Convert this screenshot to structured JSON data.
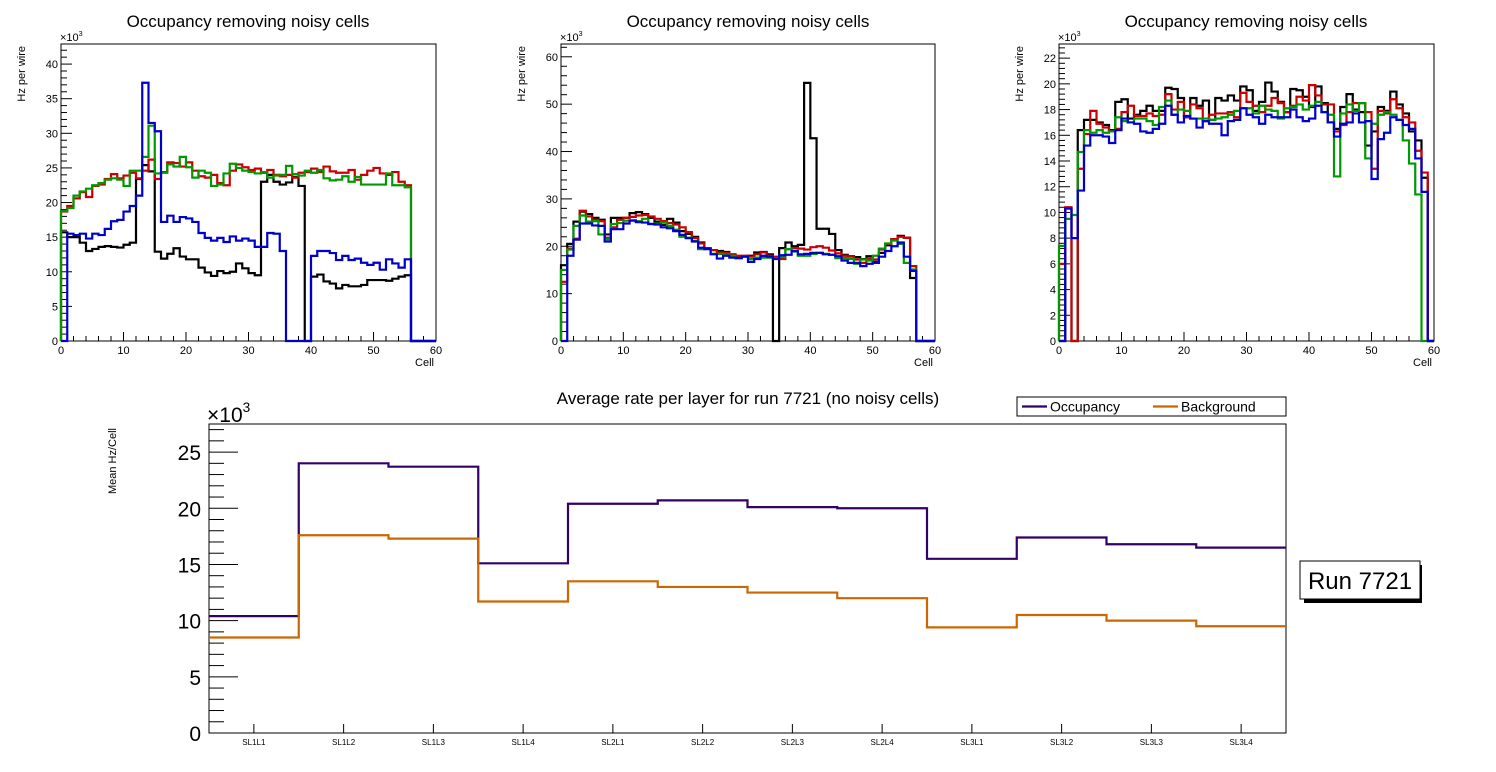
{
  "chart_data": [
    {
      "type": "line",
      "title": "Occupancy removing noisy cells",
      "xlabel": "Cell",
      "ylabel": "Hz per wire",
      "y_multiplier_label": "×10^3",
      "xlim": [
        0,
        60
      ],
      "ylim": [
        0,
        42.9
      ],
      "x_ticks": [
        0,
        10,
        20,
        30,
        40,
        50,
        60
      ],
      "y_ticks": [
        0,
        5,
        10,
        15,
        20,
        25,
        30,
        35,
        40
      ],
      "bin_width": 1,
      "series": [
        {
          "name": "black",
          "color": "#000000",
          "values": [
            15.7,
            15.0,
            15.0,
            14.2,
            13.0,
            13.3,
            13.6,
            13.7,
            13.6,
            13.5,
            13.9,
            14.2,
            23.4,
            25.4,
            24.5,
            12.9,
            11.9,
            12.6,
            13.4,
            12.2,
            11.8,
            11.8,
            10.6,
            9.9,
            9.4,
            10.1,
            9.8,
            10.0,
            11.2,
            10.5,
            9.8,
            9.5,
            23.0,
            24.0,
            23.0,
            22.6,
            22.9,
            23.7,
            22.4,
            0,
            9.3,
            9.6,
            8.6,
            8.3,
            7.6,
            8.1,
            7.9,
            7.9,
            8.1,
            8.8,
            8.8,
            8.8,
            8.7,
            9.0,
            9.3,
            9.5,
            0,
            0,
            0,
            0
          ]
        },
        {
          "name": "red",
          "color": "#cc0000",
          "values": [
            18.7,
            19.5,
            20.6,
            21.5,
            20.8,
            22.4,
            22.6,
            23.4,
            24.1,
            23.5,
            23.9,
            24.3,
            23.5,
            24.6,
            26.2,
            23.4,
            24.4,
            25.8,
            25.7,
            25.2,
            25.8,
            24.6,
            23.8,
            23.6,
            24.0,
            22.8,
            22.5,
            24.6,
            25.5,
            25.1,
            24.7,
            24.9,
            24.3,
            24.7,
            24.0,
            23.8,
            24.0,
            23.6,
            24.3,
            24.4,
            24.9,
            24.4,
            25.2,
            24.5,
            24.3,
            24.3,
            24.7,
            23.3,
            24.0,
            24.6,
            25.0,
            24.2,
            24.0,
            24.4,
            23.0,
            22.5,
            0,
            0,
            0,
            0
          ]
        },
        {
          "name": "green",
          "color": "#009900",
          "values": [
            18.8,
            19.2,
            21.0,
            21.6,
            22.0,
            22.5,
            22.8,
            23.3,
            23.5,
            23.3,
            22.4,
            24.6,
            24.6,
            26.6,
            31.1,
            24.2,
            24.3,
            25.5,
            25.2,
            26.6,
            25.1,
            23.6,
            24.6,
            24.3,
            22.4,
            22.6,
            24.2,
            25.6,
            25.0,
            24.6,
            24.4,
            24.2,
            24.4,
            23.6,
            23.9,
            24.0,
            25.3,
            24.1,
            23.9,
            24.6,
            24.3,
            24.7,
            23.5,
            23.2,
            23.3,
            23.8,
            23.0,
            23.7,
            22.6,
            22.6,
            22.6,
            22.6,
            24.2,
            22.5,
            22.5,
            22.2,
            0,
            0,
            0,
            0
          ]
        },
        {
          "name": "blue",
          "color": "#0000cc",
          "values": [
            0,
            15.5,
            15.3,
            15.5,
            14.8,
            15.5,
            15.3,
            16.2,
            17.3,
            17.5,
            18.7,
            19.5,
            21.0,
            37.3,
            31.5,
            30.3,
            17.2,
            18.1,
            17.2,
            17.9,
            17.7,
            17.2,
            15.6,
            14.9,
            14.5,
            14.9,
            14.3,
            15.1,
            14.5,
            14.8,
            14.5,
            13.6,
            13.6,
            15.6,
            15.5,
            13.0,
            0,
            0,
            0,
            0,
            12.3,
            13.0,
            13.0,
            12.7,
            11.7,
            12.3,
            11.7,
            11.9,
            11.3,
            11.0,
            11.3,
            10.3,
            11.8,
            11.2,
            10.6,
            11.8,
            0,
            0,
            0,
            0
          ]
        }
      ]
    },
    {
      "type": "line",
      "title": "Occupancy removing noisy cells",
      "xlabel": "Cell",
      "ylabel": "Hz per wire",
      "y_multiplier_label": "×10^3",
      "xlim": [
        0,
        60
      ],
      "ylim": [
        0,
        62.7
      ],
      "x_ticks": [
        0,
        10,
        20,
        30,
        40,
        50,
        60
      ],
      "y_ticks": [
        0,
        10,
        20,
        30,
        40,
        50,
        60
      ],
      "bin_width": 1,
      "series": [
        {
          "name": "black",
          "color": "#000000",
          "values": [
            16.0,
            20.5,
            25.2,
            27.3,
            26.8,
            26.0,
            25.6,
            22.5,
            26.0,
            26.0,
            26.0,
            27.0,
            27.2,
            26.8,
            26.0,
            25.2,
            24.5,
            25.8,
            25.0,
            23.2,
            22.6,
            22.0,
            20.8,
            19.6,
            19.2,
            19.0,
            18.8,
            18.3,
            17.8,
            17.9,
            18.0,
            18.7,
            18.8,
            18.3,
            0,
            19.6,
            20.8,
            20.0,
            20.3,
            54.5,
            42.8,
            23.7,
            23.7,
            22.6,
            19.2,
            18.2,
            17.9,
            17.7,
            17.3,
            17.9,
            16.7,
            18.6,
            20.2,
            21.5,
            22.2,
            21.8,
            13.3,
            0,
            0,
            0
          ]
        },
        {
          "name": "red",
          "color": "#cc0000",
          "values": [
            12.5,
            19.5,
            21.6,
            27.5,
            26.3,
            25.6,
            25.3,
            21.8,
            24.0,
            25.6,
            26.0,
            26.2,
            26.5,
            26.6,
            26.3,
            25.8,
            25.3,
            24.9,
            24.6,
            24.0,
            23.0,
            21.7,
            20.6,
            19.5,
            19.2,
            18.7,
            18.6,
            18.2,
            18.0,
            18.0,
            17.8,
            18.3,
            18.7,
            18.0,
            17.8,
            17.3,
            19.4,
            19.6,
            19.5,
            19.3,
            19.8,
            20.0,
            19.7,
            19.1,
            18.5,
            18.0,
            17.8,
            17.2,
            16.5,
            17.4,
            17.2,
            19.3,
            20.5,
            21.5,
            22.0,
            21.8,
            15.8,
            0,
            0,
            0
          ]
        },
        {
          "name": "green",
          "color": "#009900",
          "values": [
            15.0,
            19.3,
            24.3,
            26.5,
            25.2,
            25.3,
            22.5,
            21.5,
            24.7,
            24.9,
            25.4,
            25.5,
            25.3,
            25.8,
            24.7,
            24.8,
            25.0,
            24.3,
            23.5,
            22.0,
            21.8,
            21.1,
            19.4,
            19.5,
            18.4,
            18.4,
            18.3,
            18.0,
            17.5,
            17.8,
            17.3,
            17.6,
            17.6,
            17.6,
            17.4,
            17.7,
            19.4,
            18.9,
            18.0,
            18.0,
            18.4,
            18.6,
            18.4,
            18.2,
            17.5,
            17.5,
            17.3,
            16.3,
            17.2,
            17.0,
            18.0,
            19.5,
            20.6,
            21.2,
            20.5,
            16.5,
            15.1,
            0,
            0,
            0
          ]
        },
        {
          "name": "blue",
          "color": "#0000cc",
          "values": [
            0,
            18.0,
            21.4,
            24.8,
            24.8,
            24.4,
            24.3,
            21.0,
            23.6,
            23.6,
            24.8,
            25.4,
            25.1,
            25.0,
            24.7,
            24.6,
            24.0,
            23.8,
            23.2,
            22.4,
            21.7,
            21.0,
            19.7,
            19.4,
            18.3,
            17.4,
            18.0,
            17.6,
            17.5,
            17.8,
            16.7,
            17.3,
            18.0,
            17.8,
            17.3,
            18.1,
            18.2,
            19.0,
            18.3,
            18.4,
            18.6,
            18.6,
            18.3,
            18.2,
            17.9,
            17.0,
            16.5,
            16.5,
            15.8,
            16.3,
            16.5,
            17.8,
            19.0,
            20.0,
            20.8,
            17.8,
            14.8,
            0,
            0,
            0
          ]
        }
      ]
    },
    {
      "type": "line",
      "title": "Occupancy removing noisy cells",
      "xlabel": "Cell",
      "ylabel": "Hz per wire",
      "y_multiplier_label": "×10^3",
      "xlim": [
        0,
        60
      ],
      "ylim": [
        0,
        23.1
      ],
      "x_ticks": [
        0,
        10,
        20,
        30,
        40,
        50,
        60
      ],
      "y_ticks": [
        0,
        2,
        4,
        6,
        8,
        10,
        12,
        14,
        16,
        18,
        20,
        22
      ],
      "bin_width": 1,
      "series": [
        {
          "name": "black",
          "color": "#000000",
          "values": [
            0,
            10.3,
            0,
            16.4,
            17.2,
            17.2,
            17.0,
            16.8,
            16.4,
            18.6,
            18.8,
            17.3,
            17.6,
            17.9,
            18.3,
            17.9,
            17.9,
            19.7,
            19.6,
            18.9,
            17.4,
            18.9,
            18.3,
            18.7,
            17.2,
            18.9,
            18.7,
            19.1,
            18.7,
            19.8,
            19.5,
            17.9,
            18.6,
            20.1,
            19.4,
            18.6,
            17.8,
            19.6,
            19.5,
            19.0,
            18.2,
            19.8,
            18.5,
            17.0,
            16.5,
            18.2,
            19.2,
            18.0,
            17.8,
            15.2,
            16.3,
            18.2,
            17.9,
            19.4,
            18.4,
            17.7,
            16.3,
            15.6,
            12.7,
            0
          ]
        },
        {
          "name": "red",
          "color": "#cc0000",
          "values": [
            6.0,
            10.4,
            0,
            13.4,
            16.1,
            17.9,
            16.9,
            16.6,
            16.3,
            16.5,
            17.8,
            18.3,
            17.5,
            17.5,
            17.7,
            17.5,
            17.6,
            19.2,
            18.0,
            18.6,
            17.4,
            18.4,
            18.1,
            17.1,
            17.6,
            17.7,
            17.7,
            17.8,
            17.4,
            19.3,
            18.6,
            18.3,
            17.8,
            18.3,
            18.9,
            18.5,
            17.8,
            18.3,
            19.0,
            18.7,
            19.9,
            19.1,
            18.4,
            18.4,
            16.3,
            16.8,
            17.8,
            18.5,
            18.5,
            17.8,
            13.4,
            17.9,
            17.7,
            18.8,
            18.1,
            17.4,
            17.0,
            14.8,
            13.1,
            0
          ]
        },
        {
          "name": "green",
          "color": "#009900",
          "values": [
            7.4,
            9.5,
            9.8,
            14.7,
            16.4,
            16.2,
            16.4,
            16.2,
            16.3,
            17.4,
            17.1,
            17.0,
            17.3,
            17.3,
            17.1,
            16.8,
            18.2,
            18.7,
            17.6,
            18.0,
            17.9,
            17.3,
            17.3,
            17.3,
            17.2,
            17.3,
            17.4,
            17.6,
            17.9,
            18.1,
            18.1,
            17.7,
            18.3,
            18.0,
            17.9,
            17.3,
            18.1,
            18.2,
            18.4,
            18.0,
            18.3,
            18.6,
            17.8,
            17.6,
            12.8,
            17.7,
            18.4,
            17.9,
            18.5,
            14.2,
            16.9,
            17.6,
            17.8,
            17.6,
            17.2,
            15.6,
            13.8,
            11.4,
            0,
            0
          ]
        },
        {
          "name": "blue",
          "color": "#0000cc",
          "values": [
            0,
            10.3,
            8.0,
            11.7,
            15.2,
            16.0,
            16.0,
            15.9,
            15.4,
            16.4,
            17.3,
            17.0,
            16.9,
            16.3,
            16.2,
            16.5,
            16.9,
            18.3,
            17.6,
            17.0,
            17.5,
            17.3,
            16.6,
            17.1,
            16.9,
            16.9,
            16.0,
            17.1,
            17.2,
            18.1,
            17.6,
            17.4,
            16.9,
            17.6,
            17.4,
            17.4,
            17.4,
            18.0,
            17.4,
            17.1,
            17.3,
            18.3,
            17.8,
            17.0,
            15.9,
            16.9,
            17.0,
            17.7,
            17.0,
            17.1,
            12.6,
            15.7,
            16.2,
            17.4,
            17.2,
            16.8,
            16.5,
            14.2,
            11.6,
            0
          ]
        }
      ]
    },
    {
      "type": "line",
      "title": "Average rate per layer for run 7721 (no noisy cells)",
      "xlabel": "",
      "ylabel": "Mean Hz/Cell",
      "y_multiplier_label": "×10^3",
      "ylim": [
        0,
        27.5
      ],
      "y_ticks": [
        0,
        5,
        10,
        15,
        20,
        25
      ],
      "categories": [
        "SL1L1",
        "SL1L2",
        "SL1L3",
        "SL1L4",
        "SL2L1",
        "SL2L2",
        "SL2L3",
        "SL2L4",
        "SL3L1",
        "SL3L2",
        "SL3L3",
        "SL3L4"
      ],
      "legend_position": "top-right",
      "series": [
        {
          "name": "Occupancy",
          "color": "#330066",
          "values": [
            10.4,
            24.0,
            23.7,
            15.1,
            20.4,
            20.7,
            20.1,
            20.0,
            15.5,
            17.4,
            16.8,
            16.5
          ]
        },
        {
          "name": "Background",
          "color": "#cc6600",
          "values": [
            8.5,
            17.6,
            17.3,
            11.7,
            13.5,
            13.0,
            12.5,
            12.0,
            9.4,
            10.5,
            10.0,
            9.5
          ]
        }
      ],
      "annotation": "Run 7721"
    }
  ]
}
